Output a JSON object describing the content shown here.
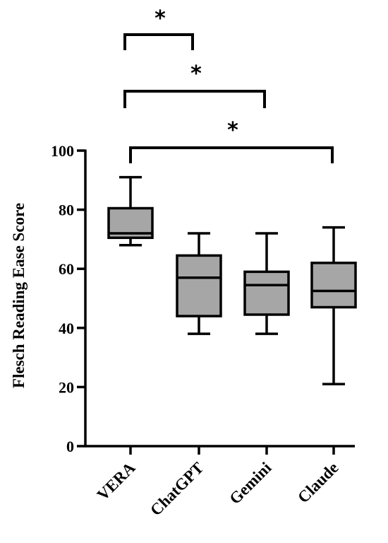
{
  "chart_data": {
    "type": "box",
    "ylabel": "Flesch Reading Ease Score",
    "ylim": [
      0,
      100
    ],
    "yticks": [
      0,
      20,
      40,
      60,
      80,
      100
    ],
    "categories": [
      "VERA",
      "ChatGPT",
      "Gemini",
      "Claude"
    ],
    "boxes": [
      {
        "min": 68,
        "q1": 70.5,
        "median": 72,
        "q3": 80.5,
        "max": 91
      },
      {
        "min": 38,
        "q1": 44,
        "median": 57,
        "q3": 64.5,
        "max": 72
      },
      {
        "min": 38,
        "q1": 44.5,
        "median": 54.5,
        "q3": 59,
        "max": 72
      },
      {
        "min": 21,
        "q1": 47,
        "median": 52.5,
        "q3": 62,
        "max": 74
      }
    ],
    "significance": [
      {
        "from": "VERA",
        "to": "ChatGPT",
        "label": "*"
      },
      {
        "from": "VERA",
        "to": "Gemini",
        "label": "*"
      },
      {
        "from": "VERA",
        "to": "Claude",
        "label": "*"
      }
    ],
    "colors": {
      "box_fill": "#a6a6a6",
      "line": "#000000"
    }
  }
}
